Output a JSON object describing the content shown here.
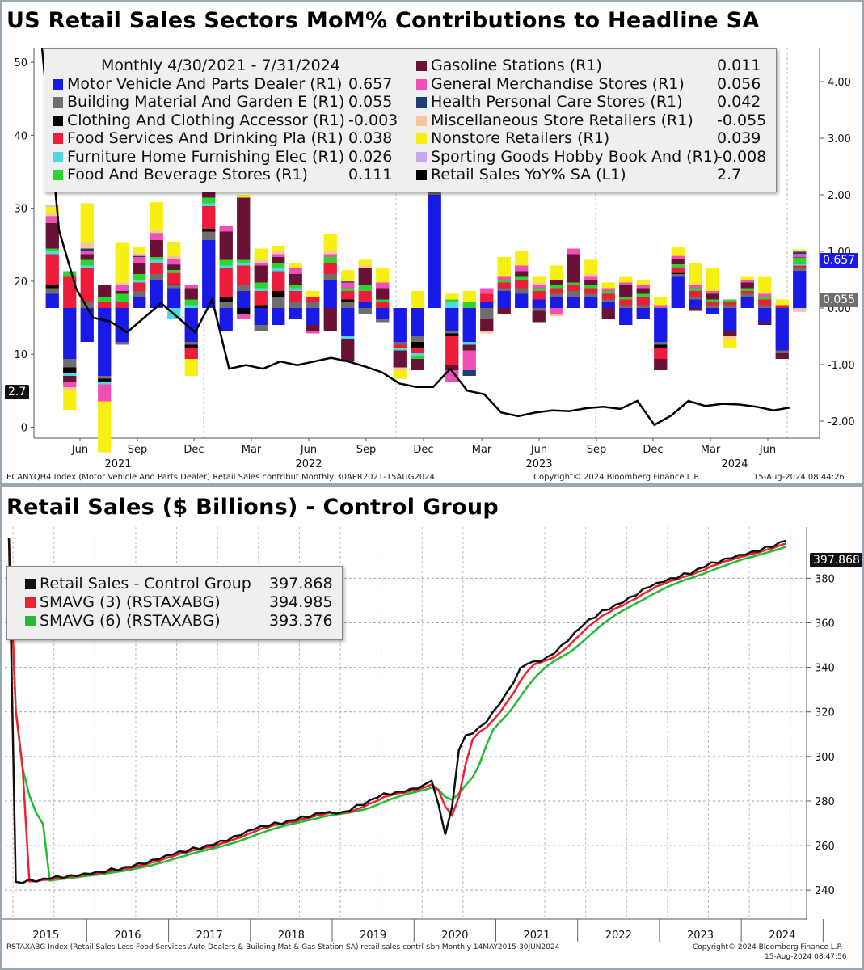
{
  "chart_data": [
    {
      "type": "bar",
      "title": "US Retail Sales Sectors MoM% Contributions to Headline SA",
      "legend_header": "Monthly 4/30/2021 - 7/31/2024",
      "x_month_labels": [
        "Jun",
        "Sep",
        "Dec",
        "Mar",
        "Jun",
        "Sep",
        "Dec",
        "Mar",
        "Jun",
        "Sep",
        "Dec",
        "Mar",
        "Jun"
      ],
      "x_year_labels": [
        "2021",
        "2022",
        "2023",
        "2024"
      ],
      "left_axis": {
        "ticks": [
          0,
          10,
          20,
          30,
          40,
          50
        ],
        "ylim": [
          -1.5,
          52
        ]
      },
      "right_axis": {
        "ticks": [
          "4.00",
          "3.00",
          "2.00",
          "1.00",
          "0.00",
          "-1.00",
          "-2.00"
        ],
        "ylim": [
          -2.3,
          4.6
        ]
      },
      "series": [
        {
          "name": "Motor Vehicle And Parts Dealer (R1)",
          "value": "0.657",
          "color": "#1a1ae6"
        },
        {
          "name": "Building Material And Garden E (R1)",
          "value": "0.055",
          "color": "#6e6e6e"
        },
        {
          "name": "Clothing And Clothing Accessor (R1)",
          "value": "-0.003",
          "color": "#000000"
        },
        {
          "name": "Food Services And Drinking Pla (R1)",
          "value": "0.038",
          "color": "#ec1c3a"
        },
        {
          "name": "Furniture Home Furnishing Elec (R1)",
          "value": "0.026",
          "color": "#4fd8e0"
        },
        {
          "name": "Food And Beverage Stores (R1)",
          "value": "0.111",
          "color": "#2ed42e"
        },
        {
          "name": "Gasoline Stations (R1)",
          "value": "0.011",
          "color": "#6a1236"
        },
        {
          "name": "General Merchandise Stores (R1)",
          "value": "0.056",
          "color": "#f04fb6"
        },
        {
          "name": "Health Personal Care Stores (R1)",
          "value": "0.042",
          "color": "#1c3d78"
        },
        {
          "name": "Miscellaneous Store Retailers (R1)",
          "value": "-0.055",
          "color": "#f7c79a"
        },
        {
          "name": "Nonstore Retailers (R1)",
          "value": "0.039",
          "color": "#f7ee12"
        },
        {
          "name": "Sporting Goods Hobby Book And (R1)",
          "value": "-0.008",
          "color": "#c9a6f0"
        },
        {
          "name": "Retail Sales YoY% SA (L1)",
          "value": "2.7",
          "color": "#000000"
        }
      ],
      "headline_yoy": [
        52,
        27,
        19,
        15,
        14.5,
        13,
        15,
        17,
        15,
        13,
        17.5,
        8,
        8.5,
        8,
        9,
        8.5,
        9,
        9.5,
        9,
        8.3,
        7.5,
        6,
        5.5,
        5.5,
        8,
        5,
        4.5,
        2,
        1.5,
        2,
        2.3,
        2.2,
        2.6,
        2.8,
        2.5,
        3.6,
        0.3,
        1.6,
        3.6,
        2.9,
        3.2,
        3.1,
        2.8,
        2.3,
        2.7
      ],
      "bar_components_R1": [
        [
          0.25,
          0.1,
          0.05,
          0.55,
          0.05,
          0.05,
          0.45,
          0.1,
          0.02,
          0.05,
          0.12,
          0.02
        ],
        [
          -0.9,
          -0.15,
          -0.1,
          0.55,
          -0.05,
          0.1,
          -0.1,
          -0.1,
          0,
          -0.05,
          -0.35,
          0
        ],
        [
          -0.6,
          0.1,
          0,
          0.6,
          0.05,
          0.1,
          0.1,
          0.05,
          0.05,
          0.1,
          0.7,
          0
        ],
        [
          -1.2,
          -0.05,
          -0.05,
          0.1,
          -0.05,
          0.1,
          0.2,
          -0.3,
          0,
          0,
          -0.9,
          0
        ],
        [
          -0.6,
          -0.05,
          0,
          0.1,
          0,
          0.15,
          0.05,
          0.1,
          0,
          0.05,
          0.7,
          0
        ],
        [
          0.2,
          0.1,
          0,
          0.15,
          0.05,
          0.1,
          0.2,
          0.1,
          0.02,
          0.05,
          0.1,
          0
        ],
        [
          0.5,
          0.1,
          0,
          0.2,
          0.05,
          0.05,
          0.3,
          0.1,
          0.02,
          0.05,
          0.5,
          0
        ],
        [
          0.35,
          0.05,
          0.02,
          0.2,
          -0.2,
          0.05,
          0.1,
          0.1,
          0,
          0.05,
          0.25,
          0
        ],
        [
          -0.6,
          -0.05,
          -0.05,
          -0.2,
          0.05,
          0.1,
          0.2,
          0.05,
          0,
          0,
          -0.3,
          0
        ],
        [
          1.2,
          0.15,
          0.05,
          0.4,
          0.05,
          0.1,
          0.1,
          0.1,
          0,
          0.05,
          0.55,
          0
        ],
        [
          -0.4,
          0.1,
          0.1,
          0.5,
          0.05,
          0.1,
          0.5,
          0.1,
          0,
          0,
          0,
          0
        ],
        [
          0.3,
          0.1,
          -0.1,
          0.35,
          0.05,
          0.05,
          1.1,
          -0.1,
          0,
          0,
          0.05,
          0
        ],
        [
          -0.3,
          -0.1,
          0.05,
          0.25,
          0.05,
          0.1,
          0.3,
          0.05,
          0,
          0.05,
          0.2,
          0
        ],
        [
          -0.3,
          0.2,
          0.1,
          0.35,
          0.05,
          0.1,
          0.1,
          0.05,
          0,
          0.05,
          0.1,
          0
        ],
        [
          -0.2,
          0.1,
          0,
          0.2,
          0.05,
          0.05,
          0.2,
          0.1,
          0,
          0,
          0.1,
          0
        ],
        [
          -0.3,
          0.1,
          0,
          0.1,
          0,
          0,
          -0.1,
          -0.05,
          0,
          0,
          0.1,
          0
        ],
        [
          0.5,
          0.1,
          0,
          0.2,
          0,
          0.1,
          -0.4,
          0.05,
          0,
          0.05,
          0.3,
          0
        ],
        [
          -0.5,
          0.1,
          0.05,
          0.15,
          -0.05,
          0.05,
          -0.4,
          0.1,
          0.02,
          0,
          0.2,
          0
        ],
        [
          0.1,
          -0.1,
          0,
          0.2,
          0,
          0.1,
          0.3,
          0,
          0,
          0.05,
          0.1,
          0
        ],
        [
          -0.2,
          -0.05,
          0,
          0.1,
          0,
          0.05,
          0.2,
          0.1,
          0,
          0,
          0.25,
          0
        ],
        [
          -0.6,
          -0.05,
          0,
          -0.05,
          -0.05,
          0,
          -0.3,
          0,
          0,
          -0.05,
          -0.15,
          0
        ],
        [
          -0.5,
          -0.1,
          -0.1,
          -0.1,
          -0.05,
          -0.05,
          -0.2,
          0,
          0,
          0,
          0.3,
          0
        ],
        [
          2.0,
          0.1,
          0.05,
          0.25,
          0.3,
          0.1,
          0.1,
          0.1,
          0.05,
          0,
          0.4,
          0
        ],
        [
          -0.4,
          -0.05,
          -0.05,
          -0.5,
          0.1,
          0.05,
          -0.1,
          -0.2,
          0,
          0,
          0.1,
          0
        ],
        [
          -0.6,
          0,
          0,
          0,
          -0.05,
          0.1,
          -0.1,
          -0.35,
          -0.1,
          0,
          0.2,
          0
        ],
        [
          0.1,
          -0.2,
          0,
          0.15,
          0,
          0,
          -0.2,
          0.1,
          0,
          -0.05,
          0,
          0
        ],
        [
          0.3,
          0.05,
          0,
          0.1,
          0,
          0.05,
          -0.1,
          0.05,
          0,
          0,
          0.35,
          0
        ],
        [
          0.25,
          0.1,
          0,
          0.15,
          0,
          0.05,
          0.1,
          0.1,
          0,
          0,
          0.25,
          0
        ],
        [
          0.15,
          -0.05,
          0,
          0.15,
          0,
          0.05,
          -0.2,
          0.05,
          0,
          0.05,
          0.1,
          0
        ],
        [
          0.2,
          0.05,
          0,
          0.1,
          0,
          0.05,
          0.1,
          -0.1,
          0,
          -0.05,
          0.25,
          0
        ],
        [
          0.2,
          0.1,
          0,
          0.1,
          0,
          0.05,
          0.5,
          0.1,
          0,
          0,
          0,
          0
        ],
        [
          0.2,
          0.05,
          0,
          0.1,
          0,
          0.05,
          0.1,
          0.05,
          0,
          0.05,
          0.25,
          0
        ],
        [
          0.1,
          0.05,
          0,
          0.1,
          0,
          0.05,
          -0.2,
          0.05,
          0,
          0,
          0.1,
          0
        ],
        [
          -0.3,
          0.05,
          0,
          0.1,
          0,
          0.05,
          0.2,
          0.05,
          0,
          0,
          0.1,
          0
        ],
        [
          -0.2,
          0.05,
          0,
          0.15,
          0,
          0.05,
          0.1,
          0.05,
          0,
          0,
          0.1,
          0
        ],
        [
          -0.6,
          -0.05,
          -0.05,
          -0.2,
          0,
          0,
          -0.2,
          0.05,
          0,
          0,
          0.15,
          0
        ],
        [
          0.55,
          0.05,
          0.02,
          0.1,
          0,
          0.05,
          0.1,
          0.05,
          0,
          0,
          0.15,
          0
        ],
        [
          0.15,
          0.05,
          0,
          0.1,
          0,
          0.05,
          -0.05,
          0.05,
          0,
          0,
          0.4,
          0
        ],
        [
          -0.1,
          0.05,
          0,
          0.05,
          0,
          0.05,
          0.1,
          0.05,
          0,
          0,
          0.4,
          0
        ],
        [
          -0.4,
          0.05,
          0,
          0.05,
          0,
          0.05,
          -0.1,
          0,
          0,
          -0.05,
          -0.15,
          0
        ],
        [
          0.2,
          0.05,
          0,
          0.05,
          0,
          0.05,
          0.1,
          0.05,
          0,
          0,
          0.05,
          0
        ],
        [
          -0.25,
          0.05,
          0,
          0.1,
          0,
          0.05,
          -0.05,
          0.05,
          0,
          0,
          0.3,
          0
        ],
        [
          -0.75,
          -0.05,
          0,
          0.05,
          0,
          0,
          -0.1,
          0,
          0,
          0,
          0.1,
          0
        ],
        [
          0.657,
          0.055,
          -0.003,
          0.038,
          0.026,
          0.111,
          0.011,
          0.056,
          0.042,
          -0.055,
          0.039,
          -0.008
        ]
      ],
      "tags": {
        "yoy": "2.7",
        "motor": "0.657",
        "bldg": "0.055"
      },
      "footer_left": "ECANYQH4 Index (Motor Vehicle And Parts Dealer) Retail Sales contribut  Monthly 30APR2021-15AUG2024",
      "footer_center": "Copyright© 2024 Bloomberg Finance L.P.",
      "footer_right": "15-Aug-2024 08:44:26"
    },
    {
      "type": "line",
      "title": "Retail Sales ($ Billions) - Control Group",
      "x_year_labels": [
        "2015",
        "2016",
        "2017",
        "2018",
        "2019",
        "2020",
        "2021",
        "2022",
        "2023",
        "2024"
      ],
      "y_axis": {
        "ticks": [
          240,
          260,
          280,
          300,
          320,
          340,
          360,
          380
        ],
        "ylim": [
          227,
          403
        ]
      },
      "series": [
        {
          "name": "Retail Sales - Control Group",
          "value": "397.868",
          "color": "#111111"
        },
        {
          "name": "SMAVG (3) (RSTAXABG)",
          "value": "394.985",
          "color": "#ee2233"
        },
        {
          "name": "SMAVG (6) (RSTAXABG)",
          "value": "393.376",
          "color": "#22bb33"
        }
      ],
      "anchor_points": [
        [
          2015.0,
          243
        ],
        [
          2015.5,
          245.5
        ],
        [
          2016.0,
          247.5
        ],
        [
          2016.5,
          251
        ],
        [
          2017.0,
          256.5
        ],
        [
          2017.5,
          261
        ],
        [
          2018.0,
          268
        ],
        [
          2018.5,
          272
        ],
        [
          2018.8,
          275
        ],
        [
          2019.0,
          274
        ],
        [
          2019.5,
          282.5
        ],
        [
          2020.0,
          286
        ],
        [
          2020.15,
          290
        ],
        [
          2020.25,
          267
        ],
        [
          2020.33,
          262
        ],
        [
          2020.42,
          300
        ],
        [
          2020.5,
          308
        ],
        [
          2020.75,
          314
        ],
        [
          2021.0,
          326
        ],
        [
          2021.25,
          342
        ],
        [
          2021.5,
          343
        ],
        [
          2021.75,
          351
        ],
        [
          2022.0,
          360
        ],
        [
          2022.25,
          366
        ],
        [
          2022.5,
          370
        ],
        [
          2022.75,
          376
        ],
        [
          2023.0,
          379
        ],
        [
          2023.25,
          382
        ],
        [
          2023.5,
          386
        ],
        [
          2023.75,
          389
        ],
        [
          2024.0,
          391
        ],
        [
          2024.25,
          394
        ],
        [
          2024.5,
          397.868
        ]
      ],
      "tags": {
        "last": "397.868"
      },
      "footer_left": "RSTAXABG Index (Retail Sales Less Food Services Auto Dealers & Building Mat & Gas Station SA) retail sales contrl $bn  Monthly 14MAY2015-30JUN2024",
      "footer_right1": "Copyright© 2024 Bloomberg Finance L.P.",
      "footer_right2": "15-Aug-2024 08:47:56"
    }
  ]
}
